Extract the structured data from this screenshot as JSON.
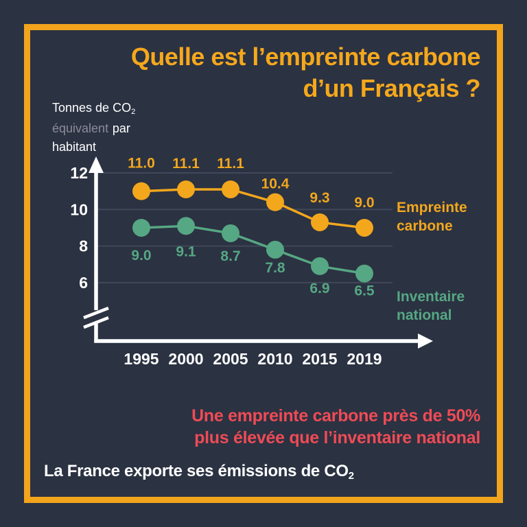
{
  "title": {
    "line1": "Quelle est l’empreinte carbone",
    "line2": "d’un Français ?"
  },
  "unit_label": {
    "line1_main": "Tonnes de CO",
    "line1_sub": "2",
    "line2_muted": "équivalent",
    "line2_rest": "par",
    "line3": "habitant"
  },
  "chart_data": {
    "type": "line",
    "x": [
      "1995",
      "2000",
      "2005",
      "2010",
      "2015",
      "2019"
    ],
    "series": [
      {
        "name": "Empreinte carbone",
        "color": "#F2A71D",
        "values": [
          11.0,
          11.1,
          11.1,
          10.4,
          9.3,
          9.0
        ]
      },
      {
        "name": "Inventaire national",
        "color": "#56A783",
        "values": [
          9.0,
          9.1,
          8.7,
          7.8,
          6.9,
          6.5
        ]
      }
    ],
    "y_ticks": [
      12,
      10,
      8,
      6
    ],
    "ylim": [
      6,
      12
    ],
    "ylabel": "Tonnes de CO₂ équivalent par habitant",
    "axis_break": true,
    "grid": true,
    "legend_position": "right"
  },
  "callout": {
    "line1": "Une empreinte carbone près de 50%",
    "line2": "plus élevée que l’inventaire national"
  },
  "footnote": {
    "text_main": "La France exporte ses émissions de CO",
    "text_sub": "2"
  },
  "colors": {
    "background": "#2B3242",
    "frame": "#F2A41C",
    "title": "#F5A81C",
    "callout": "#EF4B55",
    "footnote": "#FFFFFF",
    "muted_text": "#8D8B9A",
    "axis": "#FFFFFF",
    "gridline": "#414859"
  }
}
